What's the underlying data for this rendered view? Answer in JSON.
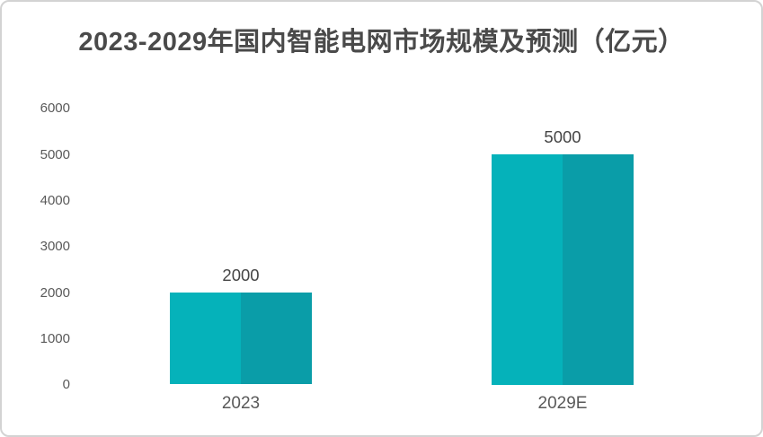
{
  "chart_data": {
    "type": "bar",
    "title": "2023-2029年国内智能电网市场规模及预测（亿元）",
    "categories": [
      "2023",
      "2029E"
    ],
    "values": [
      2000,
      5000
    ],
    "data_labels": [
      "2000",
      "5000"
    ],
    "yticks": [
      0,
      1000,
      2000,
      3000,
      4000,
      5000,
      6000
    ],
    "ylim": [
      0,
      6000
    ],
    "xlabel": "",
    "ylabel": "",
    "grid": false,
    "legend": "none"
  },
  "colors": {
    "bar_fill_left": "#05B2BA",
    "bar_fill_right": "#0A9DA8",
    "title_text": "#4A4A4A",
    "axis_tick_text": "#595959",
    "data_label_text": "#454545",
    "category_label_text": "#595959",
    "card_border": "#D3D3D3",
    "card_background": "#FFFFFF"
  }
}
